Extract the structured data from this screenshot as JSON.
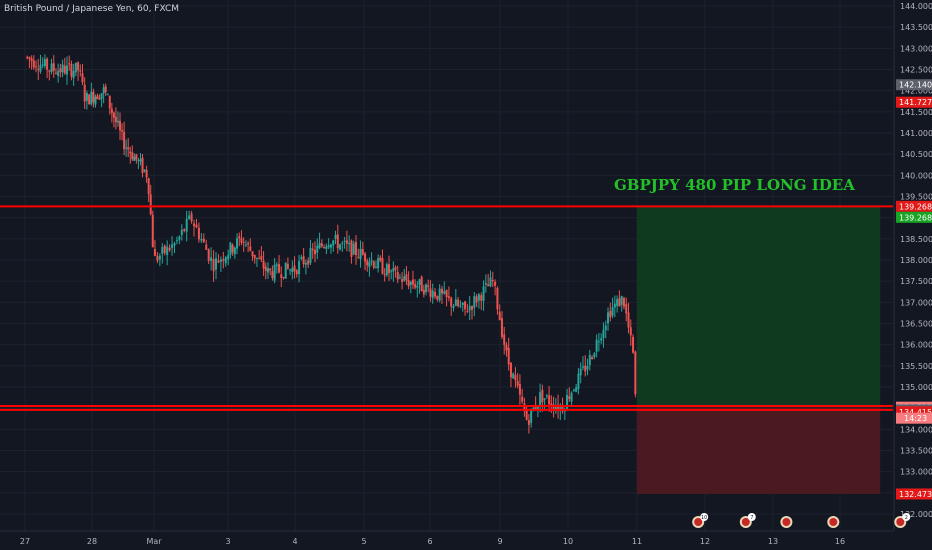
{
  "header": {
    "symbol_title": "British Pound / Japanese Yen, 60, FXCM"
  },
  "annotation": {
    "idea_title": "GBPJPY 480 PIP LONG IDEA"
  },
  "colors": {
    "background": "#131722",
    "grid": "#1e222d",
    "axis_text": "#b2b5be",
    "candle_up": "#26a69a",
    "candle_down": "#ef5350",
    "level_line": "#ff0000",
    "profit_zone": "#0f3a1f",
    "loss_zone": "#4a1a20",
    "badge_gray": "#5d606b",
    "badge_red": "#e31919",
    "badge_salmon": "#f77c80",
    "badge_green": "#17a324",
    "idea_text": "#22c12a"
  },
  "chart_data": {
    "type": "candlestick",
    "title": "British Pound / Japanese Yen, 60, FXCM",
    "ylim": [
      131.7,
      144.0
    ],
    "y_ticks": [
      "132.000",
      "132.500",
      "133.000",
      "133.500",
      "134.000",
      "134.500",
      "135.000",
      "135.500",
      "136.000",
      "136.500",
      "137.000",
      "137.500",
      "138.000",
      "138.500",
      "139.000",
      "139.500",
      "140.000",
      "140.500",
      "141.000",
      "141.500",
      "142.000",
      "142.500",
      "143.000",
      "143.500",
      "144.000"
    ],
    "x_ticks": [
      "27",
      "28",
      "Mar",
      "3",
      "4",
      "5",
      "6",
      "9",
      "10",
      "11",
      "12",
      "13",
      "16"
    ],
    "grid": true,
    "price_path": [
      [
        0,
        142.8
      ],
      [
        0.4,
        142.5
      ],
      [
        0.8,
        142.5
      ],
      [
        0.9,
        141.8
      ],
      [
        1.2,
        142.0
      ],
      [
        1.5,
        140.8
      ],
      [
        1.9,
        140.0
      ],
      [
        2.0,
        138.0
      ],
      [
        2.3,
        138.4
      ],
      [
        2.5,
        139.0
      ],
      [
        2.8,
        137.9
      ],
      [
        3.2,
        138.5
      ],
      [
        3.6,
        137.7
      ],
      [
        4.0,
        137.8
      ],
      [
        4.5,
        138.5
      ],
      [
        5.0,
        138.1
      ],
      [
        5.5,
        137.6
      ],
      [
        6.0,
        137.3
      ],
      [
        6.5,
        136.8
      ],
      [
        6.9,
        137.5
      ],
      [
        7.1,
        135.7
      ],
      [
        7.4,
        134.2
      ],
      [
        7.6,
        134.8
      ],
      [
        7.9,
        134.5
      ],
      [
        8.3,
        135.6
      ],
      [
        8.6,
        136.8
      ],
      [
        8.8,
        137.1
      ],
      [
        8.96,
        135.6
      ],
      [
        8.98,
        134.5
      ]
    ],
    "levels": [
      {
        "type": "resistance",
        "value": 139.268
      },
      {
        "type": "support",
        "value": 134.55
      },
      {
        "type": "support",
        "value": 134.46
      }
    ],
    "position": {
      "side": "long",
      "entry": 134.523,
      "target": 139.268,
      "stop": 132.473,
      "start_day": 9.0,
      "end_day": 12.6
    },
    "price_labels": [
      {
        "value": 142.14,
        "text": "142.140",
        "style": "gray"
      },
      {
        "value": 141.727,
        "text": "141.727",
        "style": "red"
      },
      {
        "value": 139.268,
        "text": "139.268",
        "style": "red"
      },
      {
        "value": 139.268,
        "text": "139.268",
        "style": "green",
        "offset_below": true
      },
      {
        "value": 134.523,
        "text": "134.523",
        "style": "salmon"
      },
      {
        "value": 134.46,
        "text": "134.460",
        "style": "gray"
      },
      {
        "value": 134.415,
        "text": "134.415",
        "style": "red"
      },
      {
        "value": 132.473,
        "text": "132.473",
        "style": "red"
      }
    ],
    "countdown": "14:23",
    "events": [
      {
        "day": 9.9,
        "badge": "10"
      },
      {
        "day": 10.6,
        "badge": "7"
      },
      {
        "day": 11.2,
        "badge": ""
      },
      {
        "day": 11.9,
        "badge": ""
      },
      {
        "day": 12.9,
        "badge": "2"
      }
    ]
  }
}
